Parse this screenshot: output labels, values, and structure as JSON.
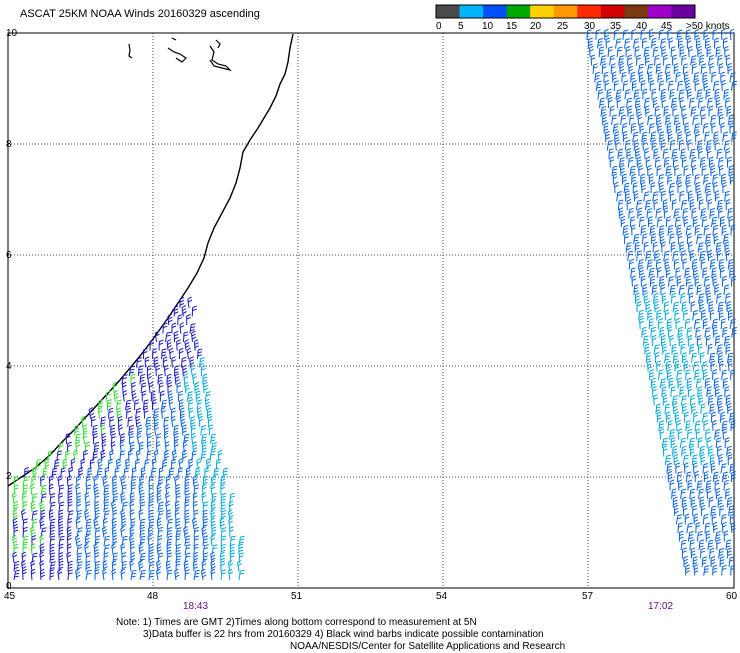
{
  "title": "ASCAT 25KM NOAA Winds 20160329 ascending",
  "legend": {
    "labels": [
      "0",
      "5",
      "10",
      "15",
      "20",
      "25",
      "30",
      "35",
      "40",
      "45",
      ">50 knots"
    ],
    "colors": [
      "#4a4a4a",
      "#00b4ff",
      "#0050ff",
      "#00aa00",
      "#ffd200",
      "#ff9900",
      "#ff2a00",
      "#d20000",
      "#7a3a10",
      "#a000c8",
      "#6a00a0"
    ]
  },
  "axes": {
    "x_ticks": [
      "45",
      "48",
      "51",
      "54",
      "57",
      "60"
    ],
    "y_ticks": [
      "10",
      "8",
      "6",
      "4",
      "2",
      "0"
    ]
  },
  "passes": {
    "left_time": "18:43",
    "right_time": "17:02"
  },
  "notes": {
    "line1": "Note: 1) Times are GMT 2)Times along bottom correspond to measurement at 5N",
    "line2": "3)Data buffer is 22 hrs from 20160329 4) Black wind barbs indicate possible contamination",
    "line3": "NOAA/NESDIS/Center for Satellite Applications and Research"
  },
  "colors": {
    "grid": "#444444",
    "coast": "#000000",
    "barb_dark_blue": "#1a1ac8",
    "barb_blue": "#0a64e6",
    "barb_cyan": "#00aadc",
    "barb_green": "#32dc32"
  }
}
